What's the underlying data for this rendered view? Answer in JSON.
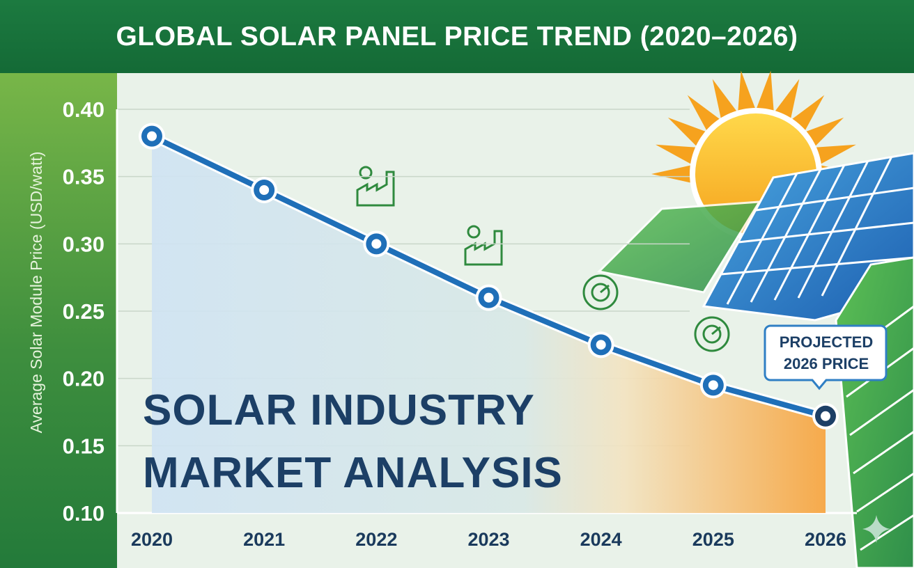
{
  "chart_data": {
    "type": "line",
    "title": "GLOBAL SOLAR PANEL PRICE TREND (2020–2026)",
    "ylabel": "Average Solar Module Price (USD/watt)",
    "xlabel": "",
    "categories": [
      "2020",
      "2021",
      "2022",
      "2023",
      "2024",
      "2025",
      "2026"
    ],
    "values": [
      0.38,
      0.34,
      0.3,
      0.26,
      0.225,
      0.195,
      0.172
    ],
    "ylim": [
      0.1,
      0.4
    ],
    "yticks": [
      "0.10",
      "0.15",
      "0.20",
      "0.25",
      "0.30",
      "0.35",
      "0.40"
    ],
    "grid": true,
    "line_color": "#1f6fb8",
    "overlay_text": [
      "SOLAR INDUSTRY",
      "MARKET ANALYSIS"
    ],
    "callout": [
      "PROJECTED",
      "2026 PRICE"
    ],
    "icons": [
      "factory-gear-icon",
      "factory-wrench-icon",
      "gear-gauge-icon",
      "gears-cycle-icon",
      "sun-icon",
      "solar-panel-icon",
      "sparkle-icon"
    ]
  }
}
